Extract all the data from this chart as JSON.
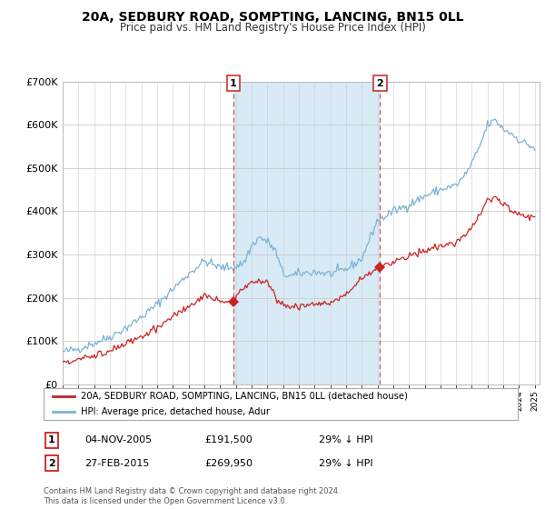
{
  "title": "20A, SEDBURY ROAD, SOMPTING, LANCING, BN15 0LL",
  "subtitle": "Price paid vs. HM Land Registry's House Price Index (HPI)",
  "ylim": [
    0,
    700000
  ],
  "xlim_start": 1995.0,
  "xlim_end": 2025.3,
  "hpi_color": "#7ab3d4",
  "price_color": "#cc2222",
  "shade_color": "#d8eaf5",
  "vline_color": "#dd4444",
  "marker1_year": 2005.84,
  "marker1_price": 191500,
  "marker2_year": 2015.16,
  "marker2_price": 269950,
  "legend_label1": "20A, SEDBURY ROAD, SOMPTING, LANCING, BN15 0LL (detached house)",
  "legend_label2": "HPI: Average price, detached house, Adur",
  "sale1_label": "04-NOV-2005",
  "sale1_price": "£191,500",
  "sale1_note": "29% ↓ HPI",
  "sale2_label": "27-FEB-2015",
  "sale2_price": "£269,950",
  "sale2_note": "29% ↓ HPI",
  "footer": "Contains HM Land Registry data © Crown copyright and database right 2024.\nThis data is licensed under the Open Government Licence v3.0.",
  "bg_color": "#ffffff",
  "plot_bg_color": "#ffffff"
}
